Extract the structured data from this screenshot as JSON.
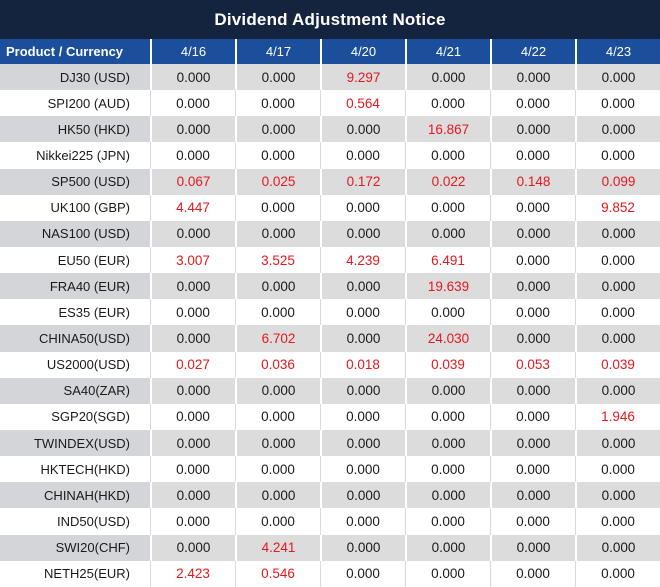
{
  "title": "Dividend Adjustment Notice",
  "colors": {
    "title_bg": "#14243e",
    "header_bg": "#1b4f9c",
    "row_alt_bg": "#dcdcdd",
    "row_alt_product_bg": "#d3d5d8",
    "row_even_border": "#d9d9d9",
    "highlight": "#e4181e",
    "text": "#1a1a1a"
  },
  "table": {
    "columns": [
      "Product / Currency",
      "4/16",
      "4/17",
      "4/20",
      "4/21",
      "4/22",
      "4/23"
    ],
    "rows": [
      {
        "product": "DJ30 (USD)",
        "values": [
          "0.000",
          "0.000",
          "9.297",
          "0.000",
          "0.000",
          "0.000"
        ]
      },
      {
        "product": "SPI200 (AUD)",
        "values": [
          "0.000",
          "0.000",
          "0.564",
          "0.000",
          "0.000",
          "0.000"
        ]
      },
      {
        "product": "HK50 (HKD)",
        "values": [
          "0.000",
          "0.000",
          "0.000",
          "16.867",
          "0.000",
          "0.000"
        ]
      },
      {
        "product": "Nikkei225 (JPN)",
        "values": [
          "0.000",
          "0.000",
          "0.000",
          "0.000",
          "0.000",
          "0.000"
        ]
      },
      {
        "product": "SP500 (USD)",
        "values": [
          "0.067",
          "0.025",
          "0.172",
          "0.022",
          "0.148",
          "0.099"
        ]
      },
      {
        "product": "UK100 (GBP)",
        "values": [
          "4.447",
          "0.000",
          "0.000",
          "0.000",
          "0.000",
          "9.852"
        ]
      },
      {
        "product": "NAS100 (USD)",
        "values": [
          "0.000",
          "0.000",
          "0.000",
          "0.000",
          "0.000",
          "0.000"
        ]
      },
      {
        "product": "EU50 (EUR)",
        "values": [
          "3.007",
          "3.525",
          "4.239",
          "6.491",
          "0.000",
          "0.000"
        ]
      },
      {
        "product": "FRA40 (EUR)",
        "values": [
          "0.000",
          "0.000",
          "0.000",
          "19.639",
          "0.000",
          "0.000"
        ]
      },
      {
        "product": "ES35 (EUR)",
        "values": [
          "0.000",
          "0.000",
          "0.000",
          "0.000",
          "0.000",
          "0.000"
        ]
      },
      {
        "product": "CHINA50(USD)",
        "values": [
          "0.000",
          "6.702",
          "0.000",
          "24.030",
          "0.000",
          "0.000"
        ]
      },
      {
        "product": "US2000(USD)",
        "values": [
          "0.027",
          "0.036",
          "0.018",
          "0.039",
          "0.053",
          "0.039"
        ]
      },
      {
        "product": "SA40(ZAR)",
        "values": [
          "0.000",
          "0.000",
          "0.000",
          "0.000",
          "0.000",
          "0.000"
        ]
      },
      {
        "product": "SGP20(SGD)",
        "values": [
          "0.000",
          "0.000",
          "0.000",
          "0.000",
          "0.000",
          "1.946"
        ]
      },
      {
        "product": "TWINDEX(USD)",
        "values": [
          "0.000",
          "0.000",
          "0.000",
          "0.000",
          "0.000",
          "0.000"
        ]
      },
      {
        "product": "HKTECH(HKD)",
        "values": [
          "0.000",
          "0.000",
          "0.000",
          "0.000",
          "0.000",
          "0.000"
        ]
      },
      {
        "product": "CHINAH(HKD)",
        "values": [
          "0.000",
          "0.000",
          "0.000",
          "0.000",
          "0.000",
          "0.000"
        ]
      },
      {
        "product": "IND50(USD)",
        "values": [
          "0.000",
          "0.000",
          "0.000",
          "0.000",
          "0.000",
          "0.000"
        ]
      },
      {
        "product": "SWI20(CHF)",
        "values": [
          "0.000",
          "4.241",
          "0.000",
          "0.000",
          "0.000",
          "0.000"
        ]
      },
      {
        "product": "NETH25(EUR)",
        "values": [
          "2.423",
          "0.546",
          "0.000",
          "0.000",
          "0.000",
          "0.000"
        ]
      }
    ]
  }
}
